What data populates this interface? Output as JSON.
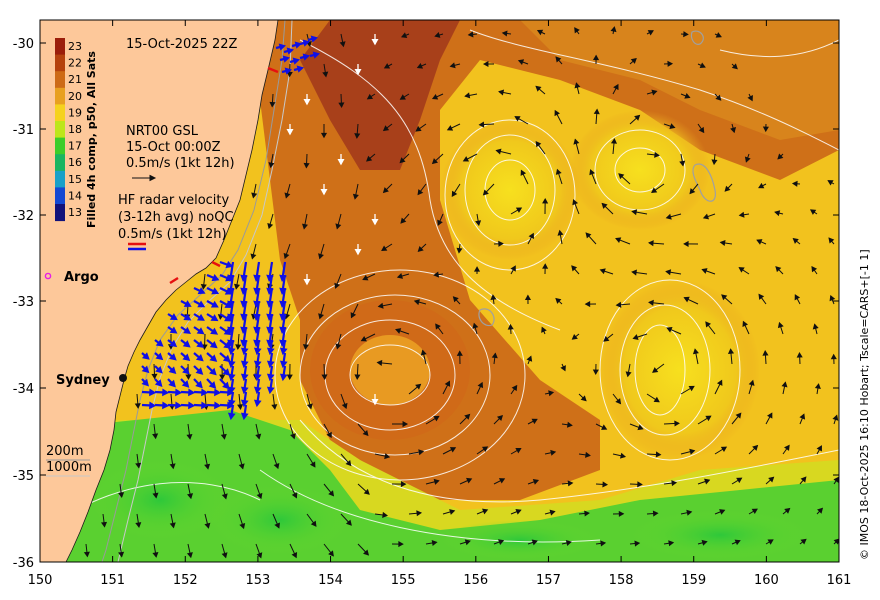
{
  "map": {
    "title_datetime": "15-Oct-2025 22Z",
    "colorbar": {
      "label": "Filled 4h comp, p50, All Sats",
      "ticks": [
        "23",
        "22",
        "21",
        "20",
        "19",
        "18",
        "17",
        "16",
        "15",
        "14",
        "13"
      ],
      "colors": [
        "#9b1e0a",
        "#b5420d",
        "#cd6a16",
        "#e8a020",
        "#f5d21e",
        "#bde61a",
        "#3ccd2a",
        "#19b560",
        "#19a0c8",
        "#1448d2",
        "#12127a"
      ]
    },
    "legend_gsl": {
      "line1": "NRT00 GSL",
      "line2": "15-Oct 00:00Z",
      "line3": "0.5m/s (1kt 12h)"
    },
    "legend_hf": {
      "line1": "HF radar velocity",
      "line2": "(3-12h avg) noQC",
      "line3": "0.5m/s (1kt 12h)"
    },
    "argo_label": "Argo",
    "city_label": "Sydney",
    "depth_200": "200m",
    "depth_1000": "1000m",
    "credit": "© IMOS 18-Oct-2025 16:10 Hobart; Tscale=CARS+[-1 1]",
    "x_ticks": [
      "150",
      "151",
      "152",
      "153",
      "154",
      "155",
      "156",
      "157",
      "158",
      "159",
      "160",
      "161"
    ],
    "y_ticks": [
      "-30",
      "-31",
      "-32",
      "-33",
      "-34",
      "-35",
      "-36"
    ],
    "axes": {
      "lon_range": [
        150,
        161
      ],
      "lat_range": [
        -36,
        -30
      ]
    },
    "colors": {
      "land": "#fdc89a",
      "warm": "#c8641a",
      "hot": "#a03c14",
      "yellow": "#f5d81e",
      "cool_green": "#46d232",
      "contour": "#ffffff",
      "radar": "#1010e6",
      "argo": "#e61ee6"
    }
  }
}
